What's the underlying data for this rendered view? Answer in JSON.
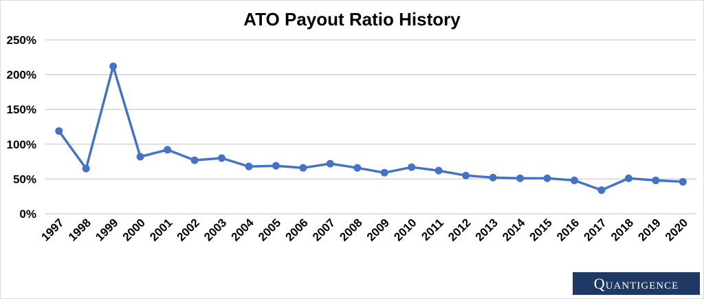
{
  "chart_data": {
    "type": "line",
    "title": "ATO Payout Ratio History",
    "xlabel": "",
    "ylabel": "",
    "categories": [
      "1997",
      "1998",
      "1999",
      "2000",
      "2001",
      "2002",
      "2003",
      "2004",
      "2005",
      "2006",
      "2007",
      "2008",
      "2009",
      "2010",
      "2011",
      "2012",
      "2013",
      "2014",
      "2015",
      "2016",
      "2017",
      "2018",
      "2019",
      "2020"
    ],
    "series": [
      {
        "values": [
          119,
          65,
          212,
          82,
          92,
          77,
          80,
          68,
          69,
          66,
          72,
          66,
          59,
          67,
          62,
          55,
          52,
          51,
          51,
          48,
          34,
          51,
          48,
          46
        ]
      }
    ],
    "ylim": [
      0,
      250
    ],
    "yticks": [
      "0%",
      "50%",
      "100%",
      "150%",
      "200%",
      "250%"
    ],
    "grid": true,
    "legend": "none",
    "colors": {
      "line": "#4472c4",
      "grid": "#bfbfbf"
    }
  },
  "brand": {
    "name": "Quantigence"
  }
}
